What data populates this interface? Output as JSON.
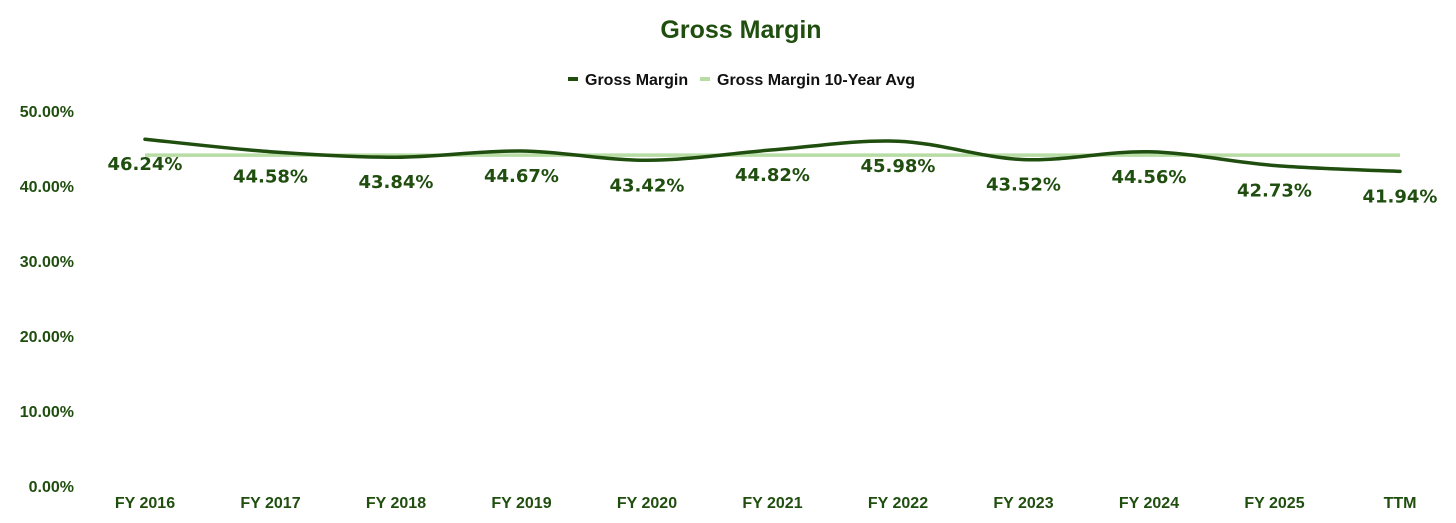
{
  "chart_data": {
    "type": "line",
    "title": "Gross Margin",
    "categories": [
      "FY 2016",
      "FY 2017",
      "FY 2018",
      "FY 2019",
      "FY 2020",
      "FY 2021",
      "FY 2022",
      "FY 2023",
      "FY 2024",
      "FY 2025",
      "TTM"
    ],
    "series": [
      {
        "name": "Gross Margin",
        "values": [
          46.24,
          44.58,
          43.84,
          44.67,
          43.42,
          44.82,
          45.98,
          43.52,
          44.56,
          42.73,
          41.94
        ],
        "labels": [
          "46.24%",
          "44.58%",
          "43.84%",
          "44.67%",
          "43.42%",
          "44.82%",
          "45.98%",
          "43.52%",
          "44.56%",
          "42.73%",
          "41.94%"
        ],
        "color": "#1f4e0f",
        "smooth": true
      },
      {
        "name": "Gross Margin 10-Year Avg",
        "values": [
          44.12,
          44.12,
          44.12,
          44.12,
          44.12,
          44.12,
          44.12,
          44.12,
          44.12,
          44.12,
          44.12
        ],
        "color": "#b7dca4"
      }
    ],
    "yticks": [
      0,
      10,
      20,
      30,
      40,
      50
    ],
    "ytick_labels": [
      "0.00%",
      "10.00%",
      "20.00%",
      "30.00%",
      "40.00%",
      "50.00%"
    ],
    "ylim": [
      0,
      50
    ],
    "xlabel": "",
    "ylabel": "",
    "grid": false,
    "legend": "top-center",
    "text_color": "#1f4e0f"
  }
}
